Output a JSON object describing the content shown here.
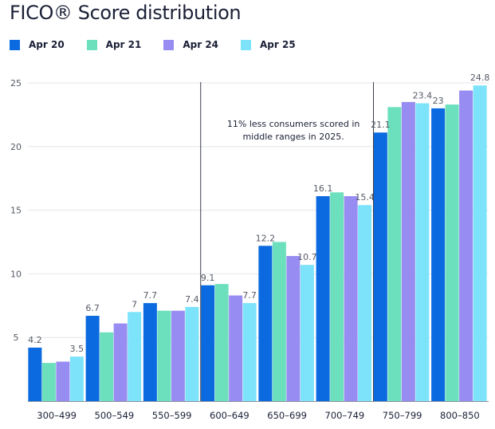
{
  "chart_data": {
    "type": "bar",
    "title": "FICO® Score distribution",
    "xlabel": "",
    "ylabel": "",
    "ylim": [
      0,
      26
    ],
    "yticks": [
      5,
      10,
      15,
      20,
      25
    ],
    "grid": true,
    "legend_position": "top-left",
    "categories": [
      "300–499",
      "500–549",
      "550–599",
      "600–649",
      "650–699",
      "700–749",
      "750–799",
      "800–850"
    ],
    "series": [
      {
        "name": "Apr 20",
        "color": "#0b6ae0",
        "values": [
          4.2,
          6.7,
          7.7,
          9.1,
          12.2,
          16.1,
          21.1,
          23
        ]
      },
      {
        "name": "Apr 21",
        "color": "#6ce0bd",
        "values": [
          3.0,
          5.4,
          7.1,
          9.2,
          12.5,
          16.4,
          23.1,
          23.3
        ]
      },
      {
        "name": "Apr 24",
        "color": "#978cf1",
        "values": [
          3.1,
          6.1,
          7.1,
          8.3,
          11.4,
          16.1,
          23.5,
          24.4
        ]
      },
      {
        "name": "Apr 25",
        "color": "#7de3fb",
        "values": [
          3.5,
          7.0,
          7.4,
          7.7,
          10.7,
          15.4,
          23.4,
          24.8
        ]
      }
    ],
    "data_labels": [
      {
        "series": 0,
        "category": 0,
        "text": "4.2"
      },
      {
        "series": 3,
        "category": 0,
        "text": "3.5"
      },
      {
        "series": 0,
        "category": 1,
        "text": "6.7"
      },
      {
        "series": 3,
        "category": 1,
        "text": "7"
      },
      {
        "series": 0,
        "category": 2,
        "text": "7.7"
      },
      {
        "series": 3,
        "category": 2,
        "text": "7.4"
      },
      {
        "series": 0,
        "category": 3,
        "text": "9.1"
      },
      {
        "series": 3,
        "category": 3,
        "text": "7.7"
      },
      {
        "series": 0,
        "category": 4,
        "text": "12.2"
      },
      {
        "series": 3,
        "category": 4,
        "text": "10.7"
      },
      {
        "series": 0,
        "category": 5,
        "text": "16.1"
      },
      {
        "series": 3,
        "category": 5,
        "text": "15.4"
      },
      {
        "series": 0,
        "category": 6,
        "text": "21.1"
      },
      {
        "series": 3,
        "category": 6,
        "text": "23.4"
      },
      {
        "series": 0,
        "category": 7,
        "text": "23"
      },
      {
        "series": 3,
        "category": 7,
        "text": "24.8"
      }
    ],
    "annotation": {
      "lines": [
        "11% less consumers scored in",
        "middle ranges in 2025."
      ]
    },
    "dividers_after_category_index": [
      2,
      5
    ],
    "colors": {
      "axis": "#8a8f9c",
      "grid": "#e4e6ec",
      "text": "#1a1f36",
      "label": "#555a66",
      "divider": "#3a3f4b"
    }
  }
}
